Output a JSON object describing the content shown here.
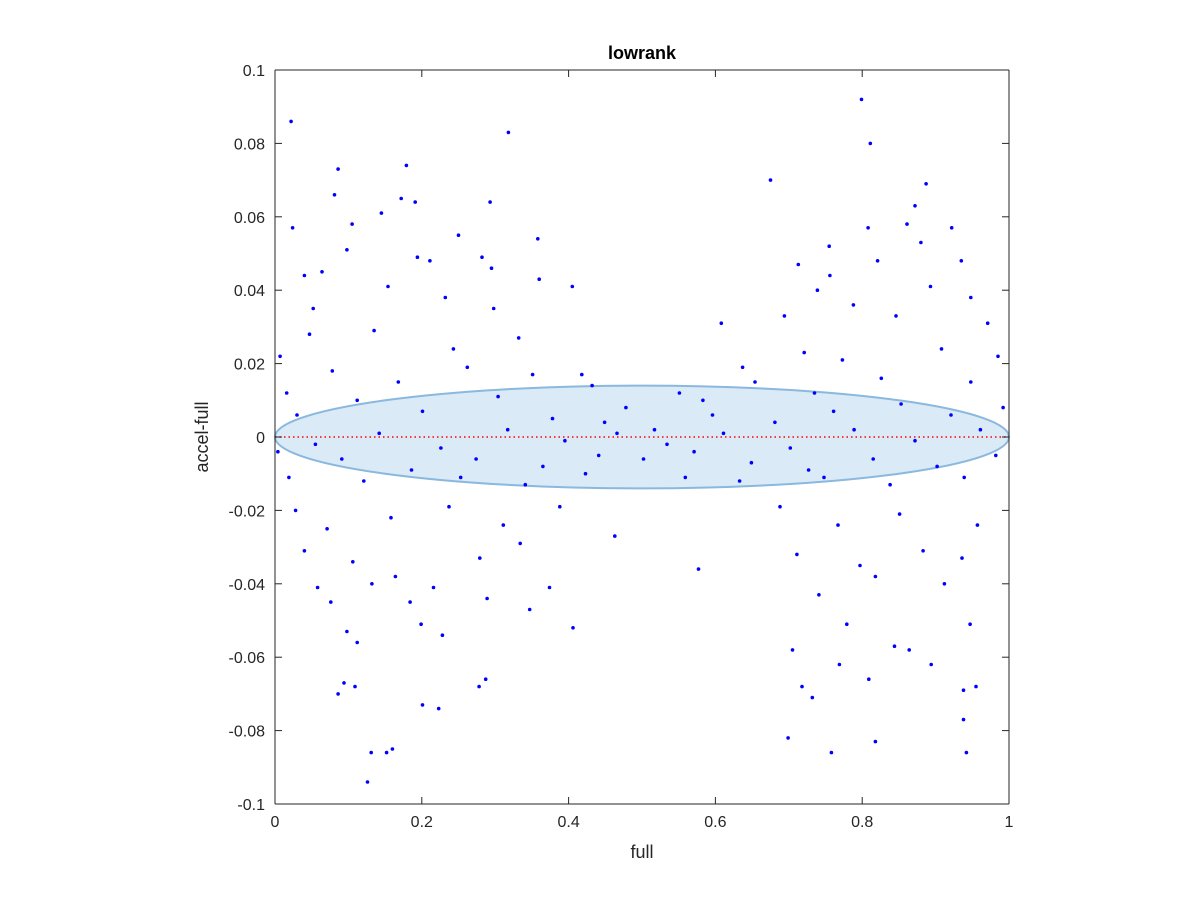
{
  "chart_data": {
    "type": "scatter",
    "title": "lowrank",
    "xlabel": "full",
    "ylabel": "accel-full",
    "xlim": [
      0,
      1
    ],
    "ylim": [
      -0.1,
      0.1
    ],
    "xticks": [
      0,
      0.2,
      0.4,
      0.6,
      0.8,
      1
    ],
    "xtick_labels": [
      "0",
      "0.2",
      "0.4",
      "0.6",
      "0.8",
      "1"
    ],
    "yticks": [
      -0.1,
      -0.08,
      -0.06,
      -0.04,
      -0.02,
      0,
      0.02,
      0.04,
      0.06,
      0.08,
      0.1
    ],
    "ytick_labels": [
      "-0.1",
      "-0.08",
      "-0.06",
      "-0.04",
      "-0.02",
      "0",
      "0.02",
      "0.04",
      "0.06",
      "0.08",
      "0.1"
    ],
    "grid": false,
    "legend": false,
    "colors": {
      "points": "#0000ff",
      "zero_line": "#ff0000",
      "ellipse_fill": "#d4e6f5",
      "ellipse_edge": "#8ab8de",
      "axes": "#262626"
    },
    "ellipse": {
      "center": [
        0.5,
        0
      ],
      "x_semi_axis": 0.5,
      "y_semi_axis": 0.014
    },
    "zero_line": {
      "y": 0,
      "style": "dotted"
    },
    "series": [
      {
        "points": [
          [
            0.022,
            0.086
          ],
          [
            0.318,
            0.083
          ],
          [
            0.799,
            0.092
          ],
          [
            0.811,
            0.08
          ],
          [
            0.086,
            0.073
          ],
          [
            0.179,
            0.074
          ],
          [
            0.081,
            0.066
          ],
          [
            0.024,
            0.057
          ],
          [
            0.675,
            0.07
          ],
          [
            0.887,
            0.069
          ],
          [
            0.293,
            0.064
          ],
          [
            0.172,
            0.065
          ],
          [
            0.191,
            0.064
          ],
          [
            0.145,
            0.061
          ],
          [
            0.105,
            0.058
          ],
          [
            0.861,
            0.058
          ],
          [
            0.922,
            0.057
          ],
          [
            0.808,
            0.057
          ],
          [
            0.872,
            0.063
          ],
          [
            0.358,
            0.054
          ],
          [
            0.25,
            0.055
          ],
          [
            0.211,
            0.048
          ],
          [
            0.282,
            0.049
          ],
          [
            0.295,
            0.046
          ],
          [
            0.755,
            0.052
          ],
          [
            0.713,
            0.047
          ],
          [
            0.88,
            0.053
          ],
          [
            0.04,
            0.044
          ],
          [
            0.064,
            0.045
          ],
          [
            0.098,
            0.051
          ],
          [
            0.194,
            0.049
          ],
          [
            0.935,
            0.048
          ],
          [
            0.821,
            0.048
          ],
          [
            0.756,
            0.044
          ],
          [
            0.739,
            0.04
          ],
          [
            0.36,
            0.043
          ],
          [
            0.405,
            0.041
          ],
          [
            0.893,
            0.041
          ],
          [
            0.948,
            0.038
          ],
          [
            0.052,
            0.035
          ],
          [
            0.154,
            0.041
          ],
          [
            0.232,
            0.038
          ],
          [
            0.298,
            0.035
          ],
          [
            0.608,
            0.031
          ],
          [
            0.694,
            0.033
          ],
          [
            0.788,
            0.036
          ],
          [
            0.846,
            0.033
          ],
          [
            0.971,
            0.031
          ],
          [
            0.007,
            0.022
          ],
          [
            0.047,
            0.028
          ],
          [
            0.135,
            0.029
          ],
          [
            0.243,
            0.024
          ],
          [
            0.332,
            0.027
          ],
          [
            0.432,
            0.014
          ],
          [
            0.551,
            0.012
          ],
          [
            0.637,
            0.019
          ],
          [
            0.721,
            0.023
          ],
          [
            0.773,
            0.021
          ],
          [
            0.908,
            0.024
          ],
          [
            0.985,
            0.022
          ],
          [
            0.016,
            0.012
          ],
          [
            0.078,
            0.018
          ],
          [
            0.168,
            0.015
          ],
          [
            0.262,
            0.019
          ],
          [
            0.351,
            0.017
          ],
          [
            0.418,
            0.017
          ],
          [
            0.478,
            0.008
          ],
          [
            0.583,
            0.01
          ],
          [
            0.654,
            0.015
          ],
          [
            0.735,
            0.012
          ],
          [
            0.826,
            0.016
          ],
          [
            0.948,
            0.015
          ],
          [
            0.03,
            0.006
          ],
          [
            0.112,
            0.01
          ],
          [
            0.201,
            0.007
          ],
          [
            0.304,
            0.011
          ],
          [
            0.378,
            0.005
          ],
          [
            0.449,
            0.004
          ],
          [
            0.517,
            0.002
          ],
          [
            0.596,
            0.006
          ],
          [
            0.681,
            0.004
          ],
          [
            0.761,
            0.007
          ],
          [
            0.853,
            0.009
          ],
          [
            0.921,
            0.006
          ],
          [
            0.992,
            0.008
          ],
          [
            0.055,
            -0.002
          ],
          [
            0.142,
            0.001
          ],
          [
            0.226,
            -0.003
          ],
          [
            0.317,
            0.002
          ],
          [
            0.395,
            -0.001
          ],
          [
            0.466,
            0.001
          ],
          [
            0.534,
            -0.002
          ],
          [
            0.611,
            0.001
          ],
          [
            0.702,
            -0.003
          ],
          [
            0.789,
            0.002
          ],
          [
            0.872,
            -0.001
          ],
          [
            0.961,
            0.002
          ],
          [
            0.004,
            -0.004
          ],
          [
            0.091,
            -0.006
          ],
          [
            0.186,
            -0.009
          ],
          [
            0.274,
            -0.006
          ],
          [
            0.365,
            -0.008
          ],
          [
            0.441,
            -0.005
          ],
          [
            0.502,
            -0.006
          ],
          [
            0.571,
            -0.004
          ],
          [
            0.649,
            -0.007
          ],
          [
            0.727,
            -0.009
          ],
          [
            0.815,
            -0.006
          ],
          [
            0.902,
            -0.008
          ],
          [
            0.982,
            -0.005
          ],
          [
            0.019,
            -0.011
          ],
          [
            0.121,
            -0.012
          ],
          [
            0.253,
            -0.011
          ],
          [
            0.341,
            -0.013
          ],
          [
            0.423,
            -0.01
          ],
          [
            0.559,
            -0.011
          ],
          [
            0.633,
            -0.012
          ],
          [
            0.748,
            -0.011
          ],
          [
            0.838,
            -0.013
          ],
          [
            0.939,
            -0.011
          ],
          [
            0.028,
            -0.02
          ],
          [
            0.071,
            -0.025
          ],
          [
            0.158,
            -0.022
          ],
          [
            0.237,
            -0.019
          ],
          [
            0.311,
            -0.024
          ],
          [
            0.388,
            -0.019
          ],
          [
            0.688,
            -0.019
          ],
          [
            0.767,
            -0.024
          ],
          [
            0.851,
            -0.021
          ],
          [
            0.957,
            -0.024
          ],
          [
            0.04,
            -0.031
          ],
          [
            0.106,
            -0.034
          ],
          [
            0.164,
            -0.038
          ],
          [
            0.279,
            -0.033
          ],
          [
            0.334,
            -0.029
          ],
          [
            0.463,
            -0.027
          ],
          [
            0.711,
            -0.032
          ],
          [
            0.797,
            -0.035
          ],
          [
            0.883,
            -0.031
          ],
          [
            0.936,
            -0.033
          ],
          [
            0.058,
            -0.041
          ],
          [
            0.132,
            -0.04
          ],
          [
            0.216,
            -0.041
          ],
          [
            0.374,
            -0.041
          ],
          [
            0.577,
            -0.036
          ],
          [
            0.741,
            -0.043
          ],
          [
            0.818,
            -0.038
          ],
          [
            0.912,
            -0.04
          ],
          [
            0.076,
            -0.045
          ],
          [
            0.184,
            -0.045
          ],
          [
            0.289,
            -0.044
          ],
          [
            0.347,
            -0.047
          ],
          [
            0.406,
            -0.052
          ],
          [
            0.705,
            -0.058
          ],
          [
            0.779,
            -0.051
          ],
          [
            0.864,
            -0.058
          ],
          [
            0.947,
            -0.051
          ],
          [
            0.098,
            -0.053
          ],
          [
            0.112,
            -0.056
          ],
          [
            0.199,
            -0.051
          ],
          [
            0.228,
            -0.054
          ],
          [
            0.769,
            -0.062
          ],
          [
            0.844,
            -0.057
          ],
          [
            0.894,
            -0.062
          ],
          [
            0.094,
            -0.067
          ],
          [
            0.109,
            -0.068
          ],
          [
            0.287,
            -0.066
          ],
          [
            0.718,
            -0.068
          ],
          [
            0.809,
            -0.066
          ],
          [
            0.938,
            -0.069
          ],
          [
            0.955,
            -0.068
          ],
          [
            0.086,
            -0.07
          ],
          [
            0.278,
            -0.068
          ],
          [
            0.732,
            -0.071
          ],
          [
            0.201,
            -0.073
          ],
          [
            0.223,
            -0.074
          ],
          [
            0.699,
            -0.082
          ],
          [
            0.818,
            -0.083
          ],
          [
            0.938,
            -0.077
          ],
          [
            0.131,
            -0.086
          ],
          [
            0.152,
            -0.086
          ],
          [
            0.16,
            -0.085
          ],
          [
            0.758,
            -0.086
          ],
          [
            0.942,
            -0.086
          ],
          [
            0.126,
            -0.094
          ]
        ]
      }
    ]
  }
}
